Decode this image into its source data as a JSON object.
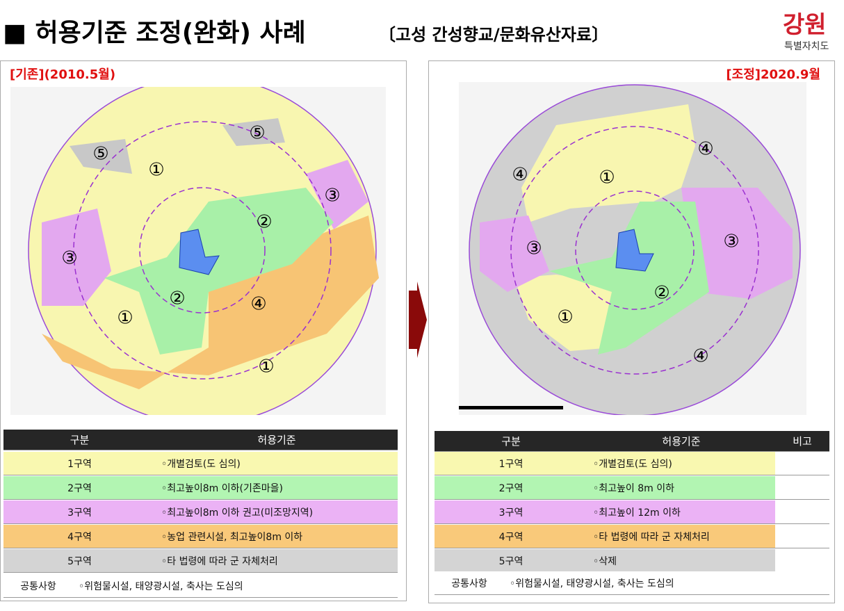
{
  "header": {
    "title": "■ 허용기준 조정(완화) 사례",
    "subtitle": "〔고성 간성향교/문화유산자료〕",
    "logo": "강원",
    "logo_sub": "특별자치도"
  },
  "left": {
    "label": "[기존](2010.5월)",
    "markers": [
      "①",
      "⑤",
      "⑤",
      "③",
      "②",
      "③",
      "②",
      "④",
      "①",
      "①"
    ],
    "table": {
      "header": [
        "구분",
        "허용기준"
      ],
      "rows": [
        [
          "1구역",
          "◦개별검토(도 심의)"
        ],
        [
          "2구역",
          "◦최고높이8m 이하(기존마을)"
        ],
        [
          "3구역",
          "◦최고높이8m 이하 권고(미조망지역)"
        ],
        [
          "4구역",
          "◦농업 관련시설, 최고높이8m 이하"
        ],
        [
          "5구역",
          "◦타 법령에 따라 군 자체처리"
        ],
        [
          "공통사항",
          "◦위험물시설, 태양광시설, 축사는 도심의"
        ]
      ]
    }
  },
  "right": {
    "label": "[조정]2020.9월",
    "markers": [
      "④",
      "④",
      "①",
      "③",
      "③",
      "②",
      "①",
      "④"
    ],
    "table": {
      "header": [
        "구분",
        "허용기준",
        "비고"
      ],
      "rows": [
        [
          "1구역",
          "◦개별검토(도 심의)",
          ""
        ],
        [
          "2구역",
          "◦최고높이 8m 이하",
          ""
        ],
        [
          "3구역",
          "◦최고높이 12m 이하",
          ""
        ],
        [
          "4구역",
          "◦타 법령에 따라 군 자체처리",
          ""
        ],
        [
          "5구역",
          "◦삭제",
          ""
        ],
        [
          "공통사항",
          "◦위험물시설, 태양광시설, 축사는 도심의"
        ]
      ]
    }
  }
}
